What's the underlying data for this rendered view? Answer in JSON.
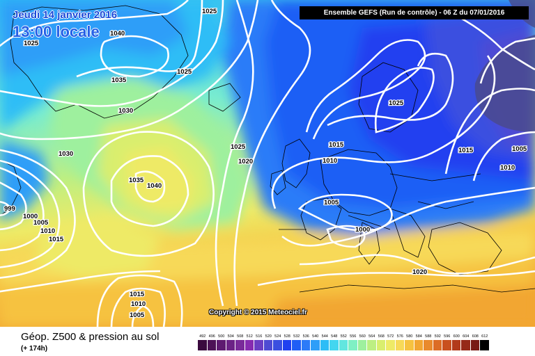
{
  "header": {
    "date": "Jeudi 14 janvier 2016",
    "local_time": "13:00 locale",
    "model_run": "Ensemble GEFS (Run de contrôle) - 06 Z du 07/01/2016"
  },
  "map": {
    "copyright": "Copyright © 2015 Meteociel.fr",
    "isobar_labels": [
      "1025",
      "1040",
      "1025",
      "1035",
      "1025",
      "1030",
      "1030",
      "1035",
      "1040",
      "1025",
      "1020",
      "1015",
      "1010",
      "1005",
      "1000",
      "1025",
      "1015",
      "1005",
      "1010",
      "999",
      "1000",
      "1005",
      "1010",
      "1015",
      "1020",
      "1015",
      "1010",
      "1005"
    ]
  },
  "footer": {
    "title": "Géop. Z500 & pression au sol",
    "lead_time": "(+ 174h)"
  },
  "legend": {
    "labels": [
      "492",
      "496",
      "500",
      "504",
      "508",
      "512",
      "516",
      "520",
      "524",
      "528",
      "532",
      "536",
      "540",
      "544",
      "548",
      "552",
      "556",
      "560",
      "564",
      "568",
      "572",
      "576",
      "580",
      "584",
      "588",
      "592",
      "596",
      "600",
      "604",
      "608",
      "612"
    ],
    "colors": [
      "#3a0a3e",
      "#4d1256",
      "#5e1a70",
      "#6c2286",
      "#7a2a9a",
      "#872bb0",
      "#6b3ec3",
      "#4e4bd3",
      "#3a4fe0",
      "#2040f0",
      "#1f5ef5",
      "#2c7bf8",
      "#2e9ef8",
      "#2dbdf6",
      "#43d6f0",
      "#62e6df",
      "#7ff0c4",
      "#9ef09e",
      "#bdef82",
      "#d9ee6e",
      "#eeea66",
      "#f7d958",
      "#f6c240",
      "#f2a632",
      "#e98a2c",
      "#dc6c25",
      "#c9501f",
      "#b23a1b",
      "#962918",
      "#781b14",
      "#000000"
    ]
  }
}
